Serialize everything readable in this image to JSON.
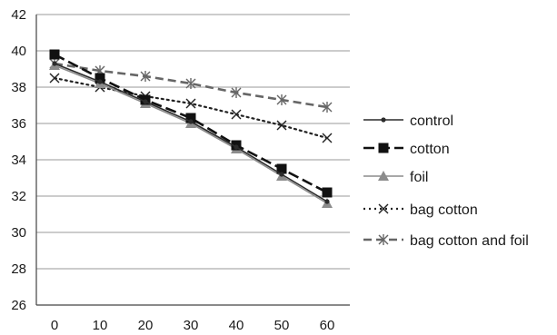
{
  "chart_data": {
    "type": "line",
    "title": "",
    "xlabel": "",
    "ylabel": "",
    "x": [
      0,
      10,
      20,
      30,
      40,
      50,
      60
    ],
    "ylim": [
      26,
      42
    ],
    "yticks": [
      26,
      28,
      30,
      32,
      34,
      36,
      38,
      40,
      42
    ],
    "grid": true,
    "legend_position": "right",
    "series": [
      {
        "name": "control",
        "values": [
          39.3,
          38.3,
          37.2,
          36.1,
          34.7,
          33.2,
          31.7
        ],
        "color": "#2b2b2b",
        "dash": "solid",
        "marker": "dot"
      },
      {
        "name": "cotton",
        "values": [
          39.8,
          38.5,
          37.3,
          36.3,
          34.8,
          33.5,
          32.2
        ],
        "color": "#111111",
        "dash": "long-dash",
        "marker": "square"
      },
      {
        "name": "foil",
        "values": [
          39.2,
          38.2,
          37.1,
          36.0,
          34.6,
          33.1,
          31.6
        ],
        "color": "#8c8c8c",
        "dash": "solid",
        "marker": "triangle"
      },
      {
        "name": "bag cotton",
        "values": [
          38.5,
          38.0,
          37.5,
          37.1,
          36.5,
          35.9,
          35.2
        ],
        "color": "#222222",
        "dash": "dotted",
        "marker": "x"
      },
      {
        "name": "bag cotton and foil",
        "values": [
          39.3,
          38.9,
          38.6,
          38.2,
          37.7,
          37.3,
          36.9
        ],
        "color": "#666666",
        "dash": "dashed",
        "marker": "asterisk"
      }
    ]
  }
}
